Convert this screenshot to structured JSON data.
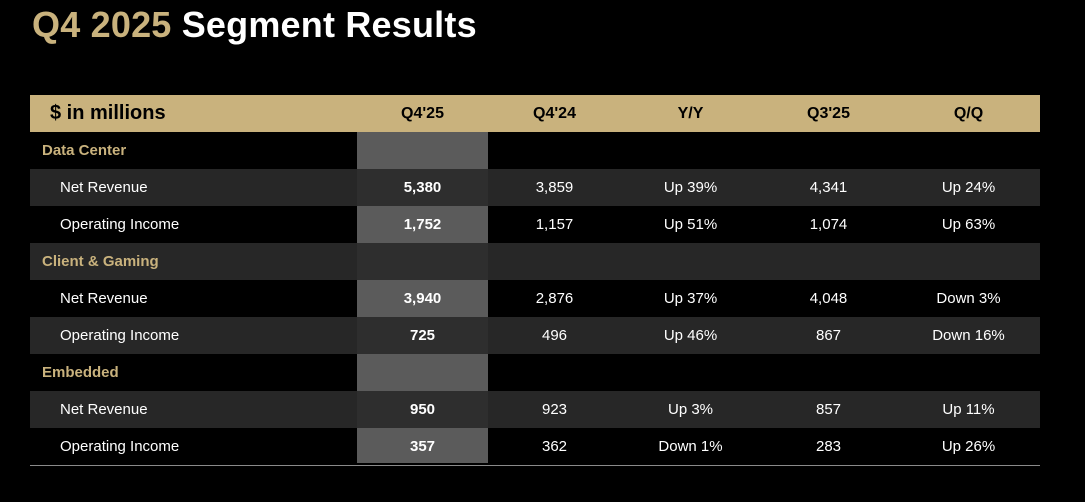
{
  "title": {
    "accent": "Q4 2025",
    "rest": "Segment Results"
  },
  "table": {
    "headers": [
      "$ in millions",
      "Q4'25",
      "Q4'24",
      "Y/Y",
      "Q3'25",
      "Q/Q"
    ],
    "colors": {
      "accent": "#C9B27D",
      "highlight_column": "#5B5B5B",
      "row_shade": "#2A2A2A",
      "background": "#000000"
    },
    "sections": [
      {
        "name": "Data Center",
        "rows": [
          {
            "label": "Net Revenue",
            "q4_25": "5,380",
            "q4_24": "3,859",
            "yy": "Up 39%",
            "q3_25": "4,341",
            "qq": "Up 24%"
          },
          {
            "label": "Operating Income",
            "q4_25": "1,752",
            "q4_24": "1,157",
            "yy": "Up 51%",
            "q3_25": "1,074",
            "qq": "Up 63%"
          }
        ]
      },
      {
        "name": "Client & Gaming",
        "rows": [
          {
            "label": "Net Revenue",
            "q4_25": "3,940",
            "q4_24": "2,876",
            "yy": "Up 37%",
            "q3_25": "4,048",
            "qq": "Down 3%"
          },
          {
            "label": "Operating Income",
            "q4_25": "725",
            "q4_24": "496",
            "yy": "Up 46%",
            "q3_25": "867",
            "qq": "Down 16%"
          }
        ]
      },
      {
        "name": "Embedded",
        "rows": [
          {
            "label": "Net Revenue",
            "q4_25": "950",
            "q4_24": "923",
            "yy": "Up 3%",
            "q3_25": "857",
            "qq": "Up 11%"
          },
          {
            "label": "Operating Income",
            "q4_25": "357",
            "q4_24": "362",
            "yy": "Down 1%",
            "q3_25": "283",
            "qq": "Up 26%"
          }
        ]
      }
    ]
  }
}
